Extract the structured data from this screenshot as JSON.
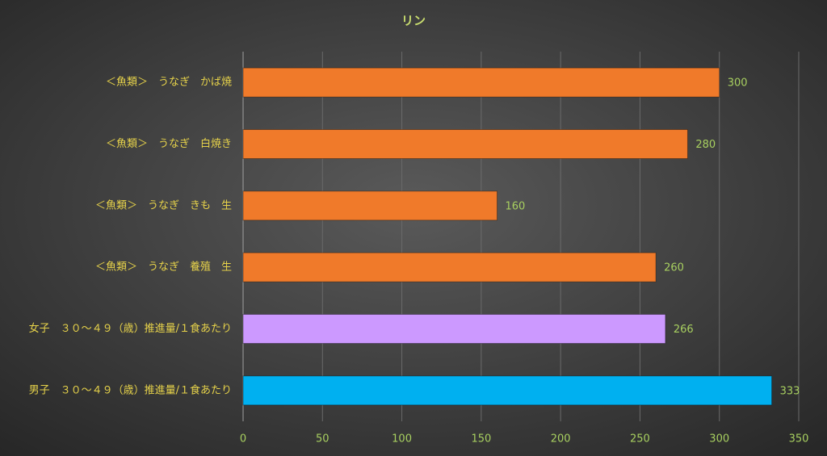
{
  "chart_data": {
    "type": "barh",
    "title": "リン",
    "categories": [
      "＜魚類＞　うなぎ　かば焼",
      "＜魚類＞　うなぎ　白焼き",
      "＜魚類＞　うなぎ　きも　生",
      "＜魚類＞　うなぎ　養殖　生",
      "女子　３０～４９（歳）推進量/１食あたり",
      "男子　３０～４９（歳）推進量/１食あたり"
    ],
    "values": [
      300,
      280,
      160,
      260,
      266,
      333
    ],
    "colors": [
      "#f07a2a",
      "#f07a2a",
      "#f07a2a",
      "#f07a2a",
      "#cc99ff",
      "#00b0f0"
    ],
    "xlim": [
      0,
      350
    ],
    "xticks": [
      0,
      50,
      100,
      150,
      200,
      250,
      300,
      350
    ],
    "grid": true
  }
}
